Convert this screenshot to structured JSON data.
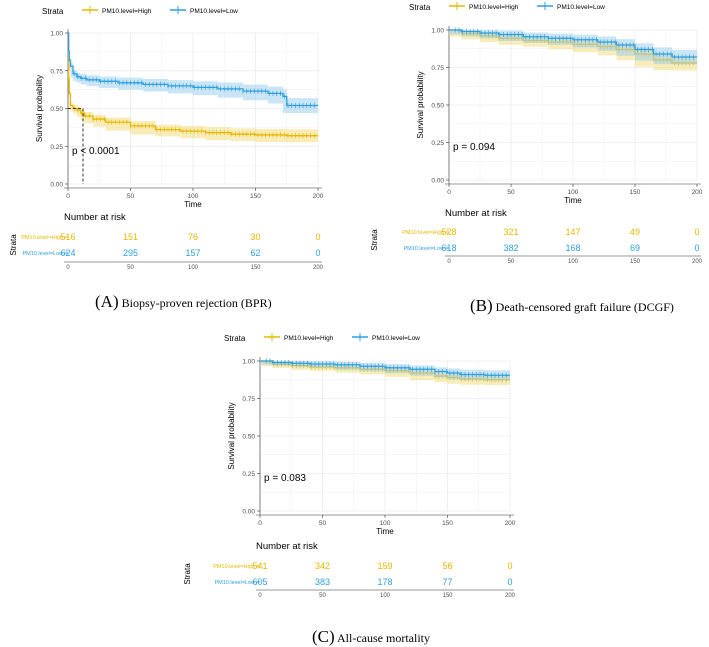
{
  "colors": {
    "high": "#E7B800",
    "low": "#2E9FDF",
    "high_band": "#f3dc80",
    "low_band": "#9fd0ee",
    "grid": "#ebebeb",
    "axis": "#333333"
  },
  "common": {
    "legend_title": "Strata",
    "series_names": [
      "PM10.level=High",
      "PM10.level=Low"
    ],
    "xlabel": "Time",
    "ylabel": "Survival probability",
    "risk_title": "Number at risk",
    "risk_ylabel": "Strata",
    "risk_xticks": [
      "0",
      "50",
      "100",
      "150",
      "200"
    ]
  },
  "captions": [
    {
      "letter": "(A)",
      "text": "Biopsy-proven rejection (BPR)"
    },
    {
      "letter": "(B)",
      "text": "Death-censored graft failure (DCGF)"
    },
    {
      "letter": "(C)",
      "text": "All-cause mortality"
    }
  ],
  "chart_data": [
    {
      "type": "line",
      "panel": "A",
      "title": "Biopsy-proven rejection (BPR)",
      "xlabel": "Time",
      "ylabel": "Survival probability",
      "xlim": [
        0,
        200
      ],
      "ylim": [
        0,
        1
      ],
      "xticks": [
        "0",
        "50",
        "100",
        "150",
        "200"
      ],
      "yticks": [
        "0.00",
        "0.25",
        "0.50",
        "0.75",
        "1.00"
      ],
      "pvalue": "p < 0.0001",
      "median_line": {
        "x": 12,
        "y": 0.5
      },
      "series": [
        {
          "name": "PM10.level=High",
          "color": "high",
          "x": [
            0,
            0.5,
            1,
            2,
            4,
            7,
            10,
            13,
            20,
            30,
            50,
            70,
            90,
            110,
            130,
            150,
            175,
            200
          ],
          "y": [
            1,
            0.7,
            0.6,
            0.52,
            0.5,
            0.49,
            0.47,
            0.45,
            0.43,
            0.41,
            0.385,
            0.36,
            0.35,
            0.34,
            0.33,
            0.325,
            0.32,
            0.32
          ],
          "band": 0.03
        },
        {
          "name": "PM10.level=Low",
          "color": "low",
          "x": [
            0,
            0.5,
            1,
            2,
            4,
            7,
            10,
            15,
            25,
            40,
            60,
            80,
            100,
            120,
            140,
            160,
            172,
            175,
            200
          ],
          "y": [
            1,
            0.88,
            0.82,
            0.78,
            0.73,
            0.71,
            0.7,
            0.69,
            0.68,
            0.67,
            0.66,
            0.65,
            0.64,
            0.63,
            0.615,
            0.6,
            0.58,
            0.52,
            0.52
          ],
          "band": 0.035
        }
      ],
      "risk_table": [
        {
          "name": "PM10.level=High",
          "values": [
            "516",
            "151",
            "76",
            "30",
            "0"
          ]
        },
        {
          "name": "PM10.level=Low",
          "values": [
            "624",
            "295",
            "157",
            "62",
            "0"
          ]
        }
      ]
    },
    {
      "type": "line",
      "panel": "B",
      "title": "Death-censored graft failure (DCGF)",
      "xlabel": "Time",
      "ylabel": "Survival probability",
      "xlim": [
        0,
        200
      ],
      "ylim": [
        0,
        1
      ],
      "xticks": [
        "0",
        "50",
        "100",
        "150",
        "200"
      ],
      "yticks": [
        "0.00",
        "0.25",
        "0.50",
        "0.75",
        "1.00"
      ],
      "pvalue": "p = 0.094",
      "series": [
        {
          "name": "PM10.level=High",
          "color": "high",
          "x": [
            0,
            10,
            25,
            40,
            60,
            80,
            100,
            120,
            135,
            150,
            165,
            180,
            200
          ],
          "y": [
            1,
            0.975,
            0.96,
            0.945,
            0.93,
            0.92,
            0.905,
            0.89,
            0.87,
            0.84,
            0.8,
            0.78,
            0.78
          ],
          "band": 0.035
        },
        {
          "name": "PM10.level=Low",
          "color": "low",
          "x": [
            0,
            10,
            25,
            40,
            60,
            80,
            100,
            120,
            135,
            150,
            165,
            180,
            200
          ],
          "y": [
            1,
            0.99,
            0.98,
            0.97,
            0.955,
            0.945,
            0.935,
            0.92,
            0.9,
            0.87,
            0.84,
            0.82,
            0.82
          ],
          "band": 0.035
        }
      ],
      "risk_table": [
        {
          "name": "PM10.level=High",
          "values": [
            "528",
            "321",
            "147",
            "49",
            "0"
          ]
        },
        {
          "name": "PM10.level=Low",
          "values": [
            "618",
            "382",
            "168",
            "69",
            "0"
          ]
        }
      ]
    },
    {
      "type": "line",
      "panel": "C",
      "title": "All-cause mortality",
      "xlabel": "Time",
      "ylabel": "Survival probability",
      "xlim": [
        0,
        200
      ],
      "ylim": [
        0,
        1
      ],
      "xticks": [
        "0",
        "50",
        "100",
        "150",
        "200"
      ],
      "yticks": [
        "0.00",
        "0.25",
        "0.50",
        "0.75",
        "1.00"
      ],
      "pvalue": "p = 0.083",
      "series": [
        {
          "name": "PM10.level=High",
          "color": "high",
          "x": [
            0,
            10,
            25,
            40,
            60,
            80,
            100,
            120,
            140,
            150,
            160,
            180,
            200
          ],
          "y": [
            1,
            0.98,
            0.97,
            0.96,
            0.955,
            0.945,
            0.935,
            0.92,
            0.9,
            0.89,
            0.88,
            0.875,
            0.875
          ],
          "band": 0.025
        },
        {
          "name": "PM10.level=Low",
          "color": "low",
          "x": [
            0,
            10,
            25,
            40,
            60,
            80,
            100,
            120,
            140,
            150,
            160,
            180,
            200
          ],
          "y": [
            1,
            0.99,
            0.985,
            0.98,
            0.975,
            0.965,
            0.955,
            0.945,
            0.93,
            0.92,
            0.91,
            0.905,
            0.905
          ],
          "band": 0.025
        }
      ],
      "risk_table": [
        {
          "name": "PM10.level=High",
          "values": [
            "541",
            "342",
            "159",
            "56",
            "0"
          ]
        },
        {
          "name": "PM10.level=Low",
          "values": [
            "605",
            "383",
            "178",
            "77",
            "0"
          ]
        }
      ]
    }
  ]
}
